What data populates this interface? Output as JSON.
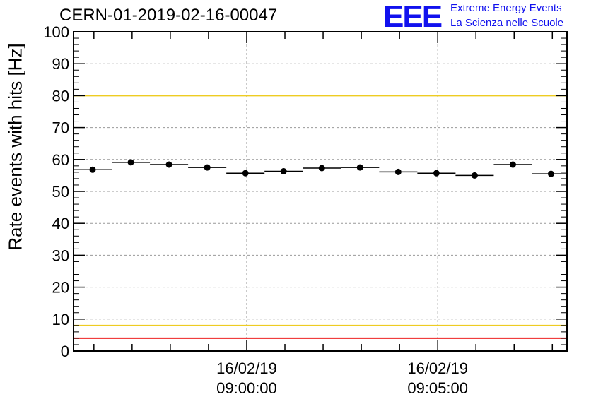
{
  "chart_data": {
    "type": "scatter",
    "title": "CERN-01-2019-02-16-00047",
    "ylabel": "Rate events with hits [Hz]",
    "xlabel": "",
    "ylim": [
      0,
      100
    ],
    "yticks": [
      0,
      10,
      20,
      30,
      40,
      50,
      60,
      70,
      80,
      90,
      100
    ],
    "grid": true,
    "xticks": [
      {
        "date": "16/02/19",
        "time": "09:00:00"
      },
      {
        "date": "16/02/19",
        "time": "09:05:00"
      }
    ],
    "xlim": [
      "08:55:28",
      "09:08:23"
    ],
    "bin_width_seconds": 60,
    "series": [
      {
        "x": [
          "08:55:58",
          "08:56:58",
          "08:57:58",
          "08:58:58",
          "08:59:58",
          "09:00:58",
          "09:01:58",
          "09:02:58",
          "09:03:58",
          "09:04:58",
          "09:05:58",
          "09:06:58",
          "09:07:58"
        ],
        "y": [
          56.8,
          59.1,
          58.4,
          57.5,
          55.7,
          56.3,
          57.3,
          57.5,
          56.1,
          55.7,
          55.0,
          58.4,
          55.5
        ]
      }
    ],
    "reference_lines": [
      {
        "y": 100,
        "color": "#ee2222"
      },
      {
        "y": 80,
        "color": "#eecc22"
      },
      {
        "y": 8,
        "color": "#eecc22"
      },
      {
        "y": 4,
        "color": "#ee2222"
      }
    ]
  },
  "logo": {
    "text": "EEE",
    "line1": "Extreme Energy Events",
    "line2": "La Scienza nelle Scuole",
    "color": "#1111ee"
  }
}
